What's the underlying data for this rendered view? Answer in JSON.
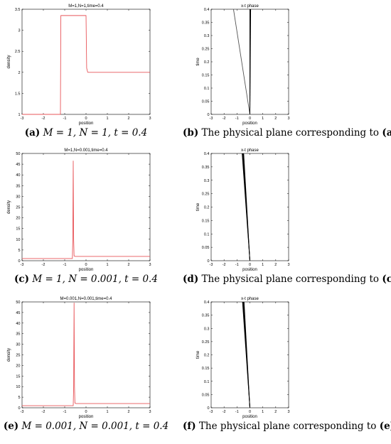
{
  "chart_data": [
    {
      "type": "line",
      "title": "M=1,N=1,time=0.4",
      "xlabel": "position",
      "ylabel": "density",
      "xlim": [
        -3,
        3
      ],
      "ylim": [
        1,
        3.5
      ],
      "xticks": [
        -3,
        -2,
        -1,
        0,
        1,
        2,
        3
      ],
      "yticks": [
        1,
        1.5,
        2,
        2.5,
        3,
        3.5
      ],
      "series": [
        {
          "color": "#e8565a",
          "x": [
            -3,
            -1.2,
            -1.18,
            -1.12,
            0,
            0.03,
            0.08,
            3
          ],
          "y": [
            1,
            1,
            3.35,
            3.35,
            3.35,
            2.1,
            2.0,
            2.0
          ]
        }
      ],
      "caption": {
        "tag": "(a)",
        "text": "M = 1, N = 1, t = 0.4"
      }
    },
    {
      "type": "line",
      "title": "x-t phase",
      "xlabel": "position",
      "ylabel": "time",
      "xlim": [
        -3,
        3
      ],
      "ylim": [
        0,
        0.4
      ],
      "xticks": [
        -3,
        -2,
        -1,
        0,
        1,
        2,
        3
      ],
      "yticks": [
        0,
        0.05,
        0.1,
        0.15,
        0.2,
        0.25,
        0.3,
        0.35,
        0.4
      ],
      "series": [
        {
          "color": "#555555",
          "x": [
            0,
            -1.27
          ],
          "y": [
            0,
            0.4
          ]
        },
        {
          "color": "#000000",
          "x": [
            0,
            0.0
          ],
          "y": [
            0,
            0.4
          ]
        },
        {
          "color": "#000000",
          "x": [
            0,
            0.03
          ],
          "y": [
            0,
            0.4
          ]
        },
        {
          "color": "#000000",
          "x": [
            0,
            0.06
          ],
          "y": [
            0,
            0.4
          ]
        }
      ],
      "caption": {
        "tag": "(b)",
        "text": "The physical plane corresponding to",
        "ref": "(a)"
      }
    },
    {
      "type": "line",
      "title": "M=1,N=0.001,time=0.4",
      "xlabel": "position",
      "ylabel": "density",
      "xlim": [
        -3,
        3
      ],
      "ylim": [
        0,
        50
      ],
      "xticks": [
        -3,
        -2,
        -1,
        0,
        1,
        2,
        3
      ],
      "yticks": [
        0,
        5,
        10,
        15,
        20,
        25,
        30,
        35,
        40,
        45,
        50
      ],
      "series": [
        {
          "color": "#e8565a",
          "x": [
            -3,
            -0.64,
            -0.62,
            -0.6,
            -0.58,
            -0.56,
            -0.5,
            3
          ],
          "y": [
            1,
            1,
            10,
            46.5,
            10,
            2.2,
            2.0,
            2.0
          ]
        }
      ],
      "caption": {
        "tag": "(c)",
        "text": "M = 1, N = 0.001, t = 0.4"
      }
    },
    {
      "type": "line",
      "title": "x-t phase",
      "xlabel": "position",
      "ylabel": "time",
      "xlim": [
        -3,
        3
      ],
      "ylim": [
        0,
        0.4
      ],
      "xticks": [
        -3,
        -2,
        -1,
        0,
        1,
        2,
        3
      ],
      "yticks": [
        0,
        0.05,
        0.1,
        0.15,
        0.2,
        0.25,
        0.3,
        0.35,
        0.4
      ],
      "series": [
        {
          "color": "#000000",
          "x": [
            0,
            -0.6
          ],
          "y": [
            0,
            0.4
          ]
        },
        {
          "color": "#000000",
          "x": [
            0,
            -0.56
          ],
          "y": [
            0,
            0.4
          ]
        },
        {
          "color": "#000000",
          "x": [
            0,
            -0.52
          ],
          "y": [
            0,
            0.4
          ]
        },
        {
          "color": "#000000",
          "x": [
            0,
            -0.48
          ],
          "y": [
            0,
            0.4
          ]
        }
      ],
      "caption": {
        "tag": "(d)",
        "text": "The physical plane corresponding to",
        "ref": "(c)"
      }
    },
    {
      "type": "line",
      "title": "M=0.001,N=0.001,time=0.4",
      "xlabel": "position",
      "ylabel": "density",
      "xlim": [
        -3,
        3
      ],
      "ylim": [
        0,
        50
      ],
      "xticks": [
        -3,
        -2,
        -1,
        0,
        1,
        2,
        3
      ],
      "yticks": [
        0,
        5,
        10,
        15,
        20,
        25,
        30,
        35,
        40,
        45,
        50
      ],
      "series": [
        {
          "color": "#e8565a",
          "x": [
            -3,
            -0.6,
            -0.58,
            -0.56,
            -0.54,
            -0.52,
            -0.46,
            3
          ],
          "y": [
            1,
            1,
            10,
            49.5,
            10,
            2.2,
            2.0,
            2.0
          ]
        }
      ],
      "caption": {
        "tag": "(e)",
        "text": "M = 0.001, N = 0.001, t = 0.4"
      }
    },
    {
      "type": "line",
      "title": "x-t phase",
      "xlabel": "position",
      "ylabel": "time",
      "xlim": [
        -3,
        3
      ],
      "ylim": [
        0,
        0.4
      ],
      "xticks": [
        -3,
        -2,
        -1,
        0,
        1,
        2,
        3
      ],
      "yticks": [
        0,
        0.05,
        0.1,
        0.15,
        0.2,
        0.25,
        0.3,
        0.35,
        0.4
      ],
      "series": [
        {
          "color": "#000000",
          "x": [
            0,
            -0.57
          ],
          "y": [
            0,
            0.4
          ]
        },
        {
          "color": "#000000",
          "x": [
            0,
            -0.53
          ],
          "y": [
            0,
            0.4
          ]
        },
        {
          "color": "#000000",
          "x": [
            0,
            -0.49
          ],
          "y": [
            0,
            0.4
          ]
        },
        {
          "color": "#000000",
          "x": [
            0,
            -0.45
          ],
          "y": [
            0,
            0.4
          ]
        }
      ],
      "caption": {
        "tag": "(f)",
        "text": "The physical plane corresponding to",
        "ref": "(e)"
      }
    }
  ]
}
